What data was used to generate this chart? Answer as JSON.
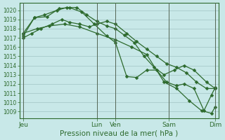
{
  "title": "Pression niveau de la mer( hPa )",
  "bg_color": "#c8e8e8",
  "line_color": "#2d6a2d",
  "grid_major_color": "#a0c4c4",
  "grid_minor_color": "#b8d8d8",
  "ylim": [
    1008.3,
    1020.8
  ],
  "yticks": [
    1009,
    1010,
    1011,
    1012,
    1013,
    1014,
    1015,
    1016,
    1017,
    1018,
    1019,
    1020
  ],
  "xlim": [
    0,
    8.0
  ],
  "xtick_labels": [
    "Jeu",
    "Lun",
    "Ven",
    "Sam",
    "Dim"
  ],
  "xtick_positions": [
    0.15,
    3.1,
    3.85,
    6.0,
    7.85
  ],
  "vline_positions": [
    0.15,
    3.1,
    3.85,
    6.0,
    7.85
  ],
  "line1_x": [
    0.15,
    0.5,
    0.85,
    1.3,
    1.7,
    2.0,
    2.4,
    2.8,
    3.1,
    3.5,
    3.85,
    4.3,
    4.7,
    5.1,
    5.5,
    5.9,
    6.3,
    6.7,
    7.1,
    7.5,
    7.85
  ],
  "line1_y": [
    1017.0,
    1017.5,
    1018.0,
    1018.5,
    1019.0,
    1018.7,
    1018.5,
    1018.2,
    1018.5,
    1018.8,
    1018.5,
    1017.5,
    1016.6,
    1015.8,
    1015.0,
    1014.2,
    1013.8,
    1013.2,
    1012.2,
    1011.5,
    1011.5
  ],
  "line2_x": [
    0.15,
    0.6,
    1.0,
    1.5,
    1.9,
    2.3,
    2.7,
    3.1,
    3.5,
    3.85,
    4.2,
    4.6,
    5.0,
    5.4,
    5.8,
    6.2,
    6.6,
    7.0,
    7.5,
    7.85
  ],
  "line2_y": [
    1017.2,
    1019.2,
    1019.5,
    1020.0,
    1020.3,
    1020.3,
    1019.5,
    1018.8,
    1018.3,
    1018.0,
    1017.3,
    1016.5,
    1015.0,
    1013.8,
    1013.0,
    1013.5,
    1014.0,
    1013.5,
    1012.2,
    1011.5
  ],
  "line3_x": [
    0.15,
    0.6,
    1.1,
    1.6,
    2.0,
    2.5,
    3.0,
    3.5,
    3.85,
    4.3,
    4.7,
    5.1,
    5.5,
    5.9,
    6.3,
    6.6,
    7.0,
    7.4,
    7.7,
    7.85
  ],
  "line3_y": [
    1017.5,
    1019.2,
    1019.3,
    1020.2,
    1020.3,
    1019.8,
    1018.5,
    1017.2,
    1016.5,
    1012.8,
    1012.7,
    1013.5,
    1013.5,
    1012.2,
    1011.8,
    1012.0,
    1011.5,
    1009.1,
    1010.8,
    1011.6
  ],
  "line4_x": [
    0.15,
    0.7,
    1.2,
    1.8,
    2.4,
    3.1,
    3.85,
    4.5,
    5.1,
    5.8,
    6.3,
    6.8,
    7.3,
    7.7,
    7.85
  ],
  "line4_y": [
    1017.5,
    1018.0,
    1018.3,
    1018.5,
    1018.2,
    1017.5,
    1016.8,
    1016.0,
    1015.2,
    1012.2,
    1011.5,
    1010.2,
    1009.1,
    1008.8,
    1009.5
  ],
  "marker_size": 2.5,
  "linewidth": 0.9,
  "ylabel_fontsize": 5.5,
  "xlabel_fontsize": 6.5,
  "title_fontsize": 7.5
}
